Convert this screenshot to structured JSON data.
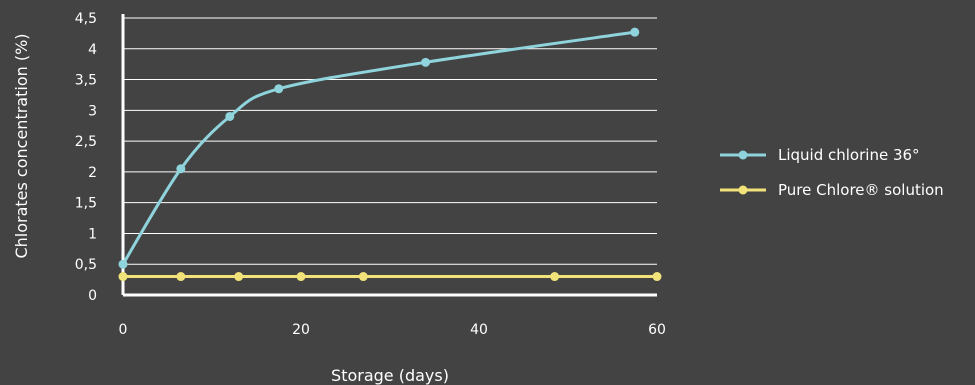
{
  "chart_data": {
    "type": "line",
    "title": "",
    "xlabel": "Storage (days)",
    "ylabel": "Chlorates concentration (%)",
    "xlim": [
      0,
      60
    ],
    "ylim": [
      0,
      4.5
    ],
    "x_ticks": [
      {
        "value": 0,
        "label": "0"
      },
      {
        "value": 20,
        "label": "20"
      },
      {
        "value": 40,
        "label": "40"
      },
      {
        "value": 60,
        "label": "60"
      }
    ],
    "y_ticks": [
      {
        "value": 0,
        "label": "0"
      },
      {
        "value": 0.5,
        "label": "0,5"
      },
      {
        "value": 1,
        "label": "1"
      },
      {
        "value": 1.5,
        "label": "1,5"
      },
      {
        "value": 2,
        "label": "2"
      },
      {
        "value": 2.5,
        "label": "2,5"
      },
      {
        "value": 3,
        "label": "3"
      },
      {
        "value": 3.5,
        "label": "3,5"
      },
      {
        "value": 4,
        "label": "4"
      },
      {
        "value": 4.5,
        "label": "4,5"
      }
    ],
    "grid": true,
    "legend_position": "right",
    "series": [
      {
        "name": "Liquid chlorine 36°",
        "color": "#8fd3dc",
        "x": [
          0,
          6.5,
          12,
          17.5,
          34,
          57.5
        ],
        "y": [
          0.5,
          2.05,
          2.9,
          3.35,
          3.78,
          4.27
        ]
      },
      {
        "name": "Pure Chlore® solution",
        "color": "#f1e27a",
        "x": [
          0,
          6.5,
          13,
          20,
          27,
          48.5,
          60
        ],
        "y": [
          0.3,
          0.3,
          0.3,
          0.3,
          0.3,
          0.3,
          0.3
        ]
      }
    ]
  }
}
